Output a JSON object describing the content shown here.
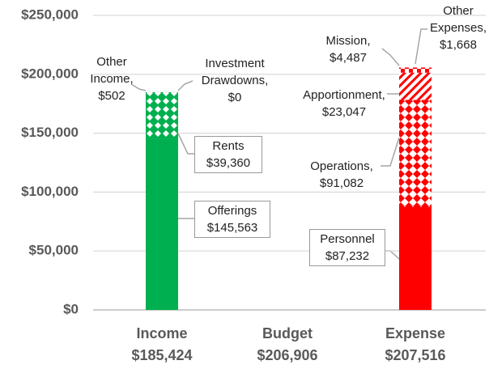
{
  "chart_data": {
    "type": "stacked_bar",
    "categories": [
      "Income",
      "Budget",
      "Expense"
    ],
    "category_totals": [
      "$185,424",
      "$206,906",
      "$207,516"
    ],
    "ylim": [
      0,
      250000
    ],
    "yticks": [
      {
        "value": 0,
        "label": "$0"
      },
      {
        "value": 50000,
        "label": "$50,000"
      },
      {
        "value": 100000,
        "label": "$100,000"
      },
      {
        "value": 150000,
        "label": "$150,000"
      },
      {
        "value": 200000,
        "label": "$200,000"
      },
      {
        "value": 250000,
        "label": "$250,000"
      }
    ],
    "grid": true,
    "series": [
      {
        "name": "Offerings",
        "color": "#00b050",
        "pattern": "solid",
        "values": [
          145563,
          null,
          null
        ],
        "value_labels": [
          "$145,563",
          null,
          null
        ]
      },
      {
        "name": "Rents",
        "color": "#00b050",
        "pattern": "diamond",
        "values": [
          39360,
          null,
          null
        ],
        "value_labels": [
          "$39,360",
          null,
          null
        ]
      },
      {
        "name": "Investment Drawdowns,",
        "color": "#00b050",
        "pattern": "solid",
        "values": [
          0,
          null,
          null
        ],
        "value_labels": [
          "$0",
          null,
          null
        ]
      },
      {
        "name": "Other Income,",
        "color": "#00b050",
        "pattern": "dots",
        "values": [
          502,
          null,
          null
        ],
        "value_labels": [
          "$502",
          null,
          null
        ]
      },
      {
        "name": "Personnel",
        "color": "#ff0000",
        "pattern": "solid",
        "values": [
          null,
          null,
          87232
        ],
        "value_labels": [
          null,
          null,
          "$87,232"
        ]
      },
      {
        "name": "Operations,",
        "color": "#ff0000",
        "pattern": "diamond-light",
        "values": [
          null,
          null,
          91082
        ],
        "value_labels": [
          null,
          null,
          "$91,082"
        ]
      },
      {
        "name": "Apportionment,",
        "color": "#ff0000",
        "pattern": "stripes",
        "values": [
          null,
          null,
          23047
        ],
        "value_labels": [
          null,
          null,
          "$23,047"
        ]
      },
      {
        "name": "Mission,",
        "color": "#ff0000",
        "pattern": "check",
        "values": [
          null,
          null,
          4487
        ],
        "value_labels": [
          null,
          null,
          "$4,487"
        ]
      },
      {
        "name": "Other Expenses,",
        "color": "#ff0000",
        "pattern": "dots",
        "values": [
          null,
          null,
          1668
        ],
        "value_labels": [
          null,
          null,
          "$1,668"
        ]
      }
    ]
  }
}
